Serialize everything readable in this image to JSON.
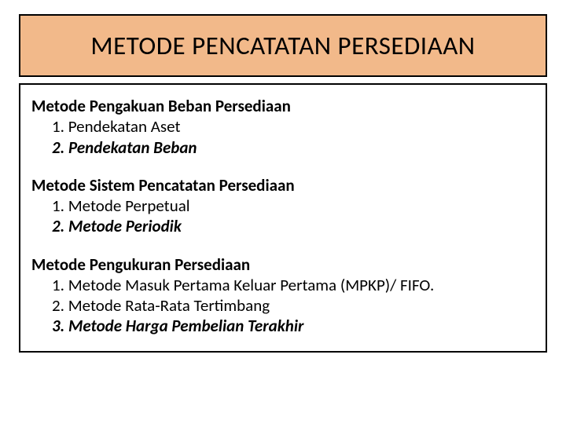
{
  "title": "METODE PENCATATAN PERSEDIAAN",
  "colors": {
    "title_bg": "#f2b98a",
    "border": "#000000",
    "text": "#000000",
    "page_bg": "#ffffff"
  },
  "typography": {
    "title_fontsize": 33,
    "body_fontsize": 21,
    "font_family": "Calibri, Arial, sans-serif"
  },
  "sections": [
    {
      "heading": "Metode Pengakuan Beban Persediaan",
      "items": [
        {
          "text": "1. Pendekatan Aset",
          "italic": false,
          "bold": false
        },
        {
          "text": "2. Pendekatan Beban",
          "italic": true,
          "bold": true
        }
      ]
    },
    {
      "heading": "Metode Sistem Pencatatan Persediaan",
      "items": [
        {
          "text": "1. Metode Perpetual",
          "italic": false,
          "bold": false
        },
        {
          "text": "2. Metode Periodik",
          "italic": true,
          "bold": true
        }
      ]
    },
    {
      "heading": "Metode Pengukuran Persediaan",
      "items": [
        {
          "text": "1. Metode Masuk Pertama Keluar Pertama (MPKP)/ FIFO.",
          "italic": false,
          "bold": false
        },
        {
          "text": "2. Metode Rata-Rata Tertimbang",
          "italic": false,
          "bold": false
        },
        {
          "text": "3. Metode Harga Pembelian Terakhir",
          "italic": true,
          "bold": true
        }
      ]
    }
  ]
}
